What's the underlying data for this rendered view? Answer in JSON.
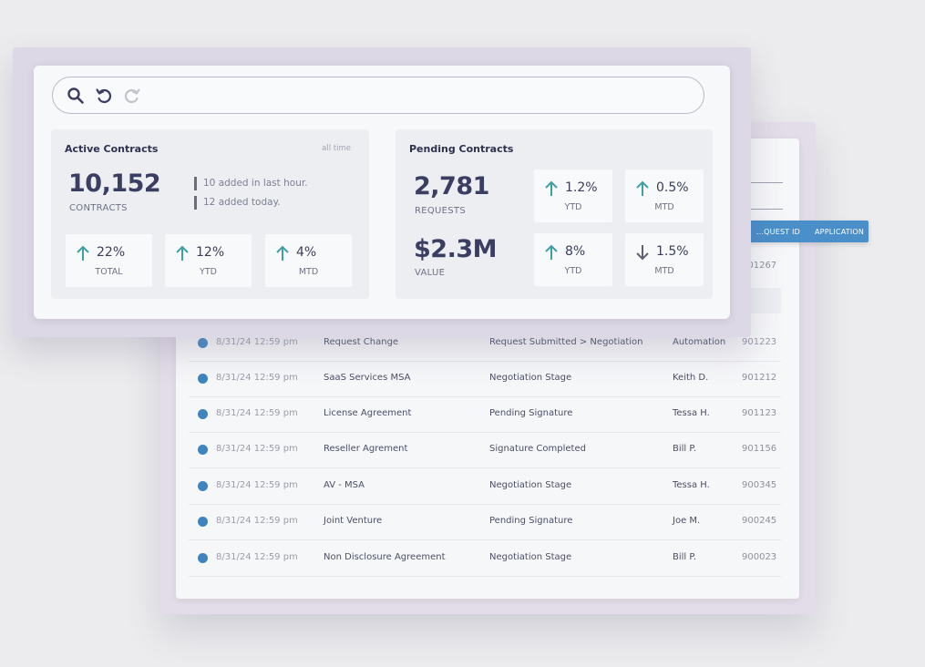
{
  "colors": {
    "accent": "#4a8fc9",
    "arrow_up": "#3fa0a3",
    "arrow_down": "#5e6070",
    "dot": "#3e85c0"
  },
  "table": {
    "headers": [
      "...QUEST ID",
      "APPLICATION"
    ],
    "partial_top_row": {
      "id": "901267"
    },
    "partial_row": {
      "date": "8/31/24 12:59 pm",
      "name": "Request Change",
      "status": "Request Submitted > Negotiation",
      "owner": "Automation",
      "id": "901223"
    },
    "rows": [
      {
        "date": "8/31/24 12:59 pm",
        "name": "SaaS Services MSA",
        "status": "Negotiation Stage",
        "owner": "Keith D.",
        "id": "901212"
      },
      {
        "date": "8/31/24 12:59 pm",
        "name": "License Agreement",
        "status": "Pending Signature",
        "owner": "Tessa H.",
        "id": "901123"
      },
      {
        "date": "8/31/24 12:59 pm",
        "name": "Reseller Agrement",
        "status": "Signature Completed",
        "owner": "Bill P.",
        "id": "901156"
      },
      {
        "date": "8/31/24 12:59 pm",
        "name": "AV - MSA",
        "status": "Negotiation Stage",
        "owner": "Tessa H.",
        "id": "900345"
      },
      {
        "date": "8/31/24 12:59 pm",
        "name": "Joint Venture",
        "status": "Pending Signature",
        "owner": "Joe M.",
        "id": "900245"
      },
      {
        "date": "8/31/24 12:59 pm",
        "name": "Non Disclosure Agreement",
        "status": "Negotiation Stage",
        "owner": "Bill P.",
        "id": "900023"
      }
    ]
  },
  "toolbar": {
    "icons": [
      "search-icon",
      "undo-icon",
      "redo-icon"
    ]
  },
  "active": {
    "title": "Active Contracts",
    "filter": "all time",
    "count": "10,152",
    "count_label": "CONTRACTS",
    "notes": [
      "10 added in last hour.",
      "12 added today."
    ],
    "stats": [
      {
        "value": "22%",
        "label": "TOTAL",
        "dir": "up"
      },
      {
        "value": "12%",
        "label": "YTD",
        "dir": "up"
      },
      {
        "value": "4%",
        "label": "MTD",
        "dir": "up"
      }
    ]
  },
  "pending": {
    "title": "Pending Contracts",
    "requests": "2,781",
    "requests_label": "REQUESTS",
    "value": "$2.3M",
    "value_label": "VALUE",
    "stats": [
      {
        "value": "1.2%",
        "label": "YTD",
        "dir": "up"
      },
      {
        "value": "0.5%",
        "label": "MTD",
        "dir": "up"
      },
      {
        "value": "8%",
        "label": "YTD",
        "dir": "up"
      },
      {
        "value": "1.5%",
        "label": "MTD",
        "dir": "down"
      }
    ]
  }
}
